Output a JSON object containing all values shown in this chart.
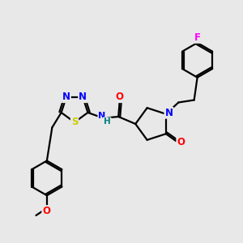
{
  "background_color": "#e8e8e8",
  "fig_size": [
    3.0,
    3.0
  ],
  "dpi": 100,
  "atom_colors": {
    "N": "#0000ff",
    "O": "#ff0000",
    "S": "#cccc00",
    "F": "#ff00ff",
    "C": "#000000",
    "H": "#008080"
  },
  "bond_color": "#000000",
  "bond_width": 1.6,
  "font_size_atom": 8.5
}
